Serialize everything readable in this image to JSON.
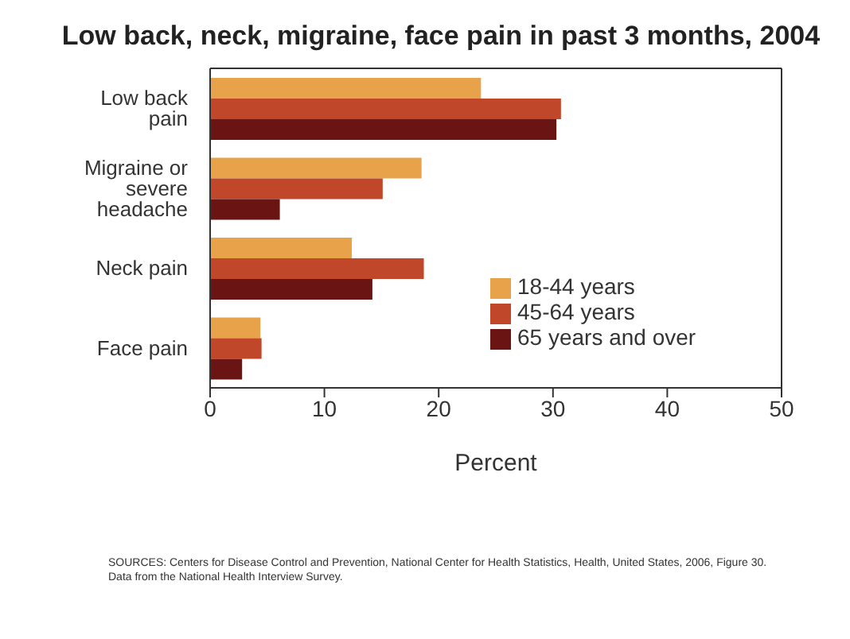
{
  "chart_data": {
    "type": "bar",
    "orientation": "horizontal",
    "title": "Low back, neck, migraine, face pain in past 3 months, 2004",
    "xlabel": "Percent",
    "categories": [
      "Low back pain",
      "Migraine or severe headache",
      "Neck pain",
      "Face pain"
    ],
    "series": [
      {
        "name": "18-44 years",
        "color": "#e8a24a",
        "values": [
          23.7,
          18.5,
          12.4,
          4.4
        ]
      },
      {
        "name": "45-64 years",
        "color": "#c0472a",
        "values": [
          30.7,
          15.1,
          18.7,
          4.5
        ]
      },
      {
        "name": "65 years and over",
        "color": "#6b1414",
        "values": [
          30.3,
          6.1,
          14.2,
          2.8
        ]
      }
    ],
    "xlim": [
      0,
      50
    ],
    "xticks": [
      0,
      10,
      20,
      30,
      40,
      50
    ],
    "grid": false,
    "legend": "right",
    "annotations": [
      "SOURCES: Centers for Disease Control and Prevention, National Center for Health Statistics, Health, United States, 2006, Figure 30.",
      "Data from the National Health Interview Survey."
    ]
  }
}
